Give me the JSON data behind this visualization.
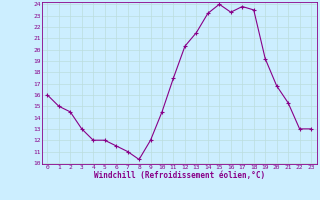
{
  "x": [
    0,
    1,
    2,
    3,
    4,
    5,
    6,
    7,
    8,
    9,
    10,
    11,
    12,
    13,
    14,
    15,
    16,
    17,
    18,
    19,
    20,
    21,
    22,
    23
  ],
  "y": [
    16,
    15,
    14.5,
    13,
    12,
    12,
    11.5,
    11,
    10.3,
    12,
    14.5,
    17.5,
    20.3,
    21.5,
    23.2,
    24.0,
    23.3,
    23.8,
    23.5,
    19.2,
    16.8,
    15.3,
    13.0,
    13.0
  ],
  "line_color": "#880088",
  "marker": "+",
  "marker_size": 3,
  "background_color": "#cceeff",
  "grid_color": "#bbdddd",
  "xlabel": "Windchill (Refroidissement éolien,°C)",
  "ylim": [
    10,
    24
  ],
  "xlim": [
    -0.5,
    23.5
  ],
  "yticks": [
    10,
    11,
    12,
    13,
    14,
    15,
    16,
    17,
    18,
    19,
    20,
    21,
    22,
    23,
    24
  ],
  "xticks": [
    0,
    1,
    2,
    3,
    4,
    5,
    6,
    7,
    8,
    9,
    10,
    11,
    12,
    13,
    14,
    15,
    16,
    17,
    18,
    19,
    20,
    21,
    22,
    23
  ],
  "tick_fontsize": 4.5,
  "xlabel_fontsize": 5.5,
  "line_width": 0.8,
  "marker_linewidth": 0.8
}
